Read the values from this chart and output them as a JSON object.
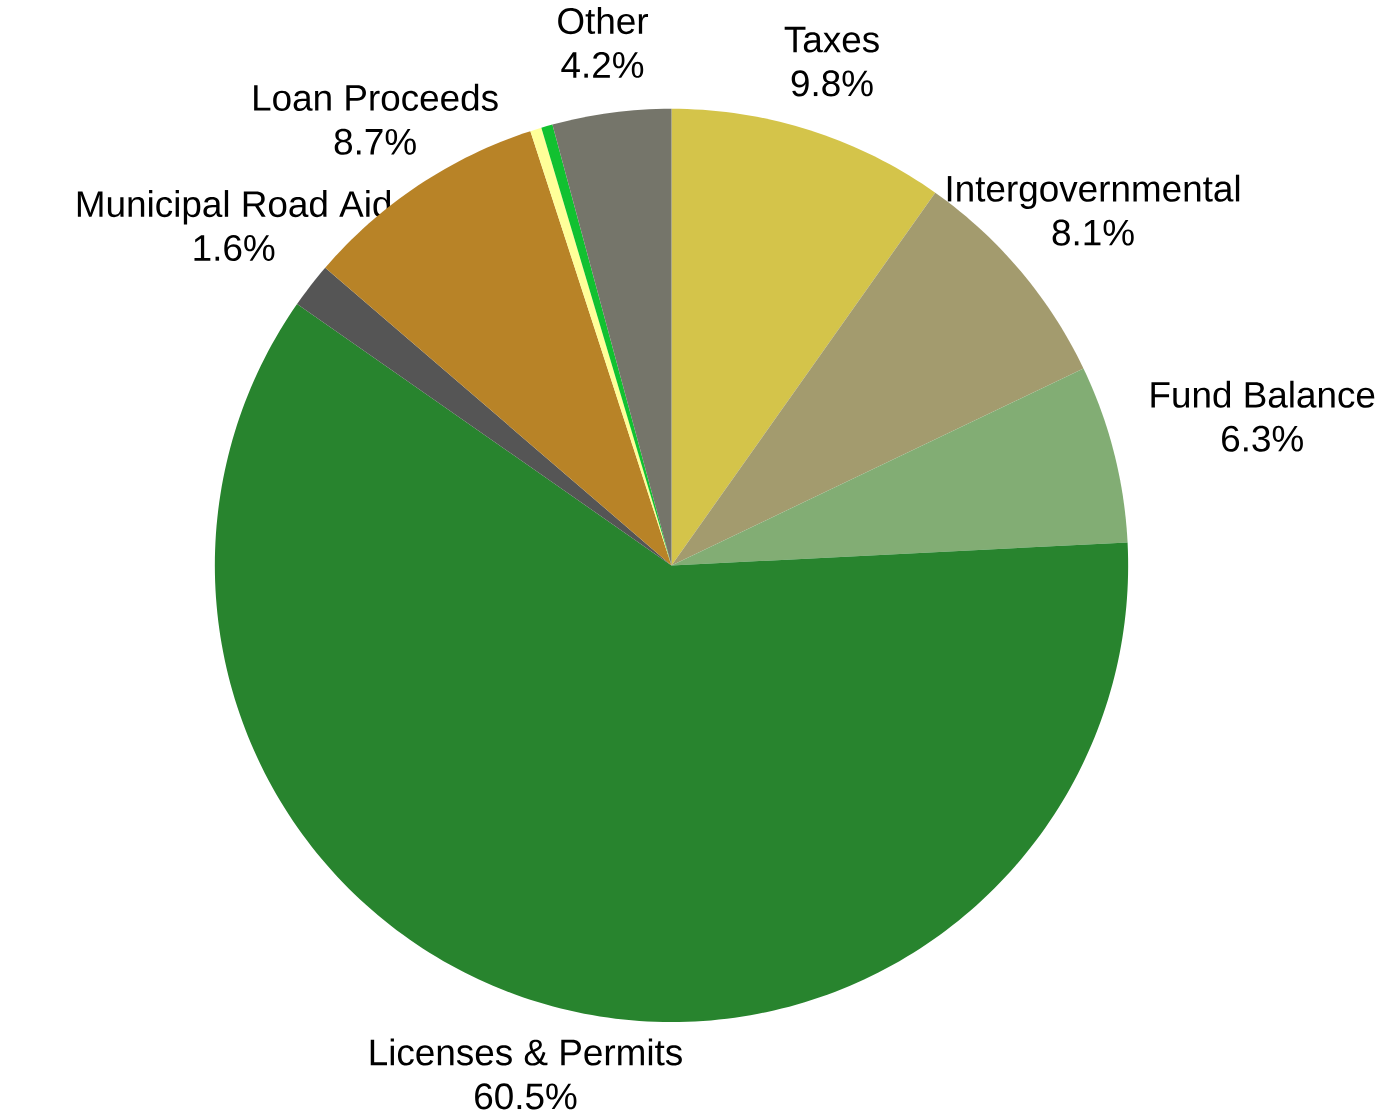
{
  "chart_data": {
    "type": "pie",
    "categories": [
      "Taxes",
      "Intergovernmental",
      "Fund Balance",
      "Licenses & Permits",
      "Municipal Road Aid",
      "Loan Proceeds",
      null,
      null,
      "Other"
    ],
    "values": [
      9.8,
      8.1,
      6.3,
      60.5,
      1.6,
      8.7,
      0.4,
      0.4,
      4.2
    ],
    "colors": [
      "#d4c44a",
      "#a39b6e",
      "#82ad74",
      "#28842e",
      "#555555",
      "#b88327",
      "#ffff99",
      "#11c130",
      "#75756a"
    ],
    "value_labels": [
      "9.8%",
      "8.1%",
      "6.3%",
      "60.5%",
      "1.6%",
      "8.7%",
      null,
      null,
      "4.2%"
    ]
  }
}
